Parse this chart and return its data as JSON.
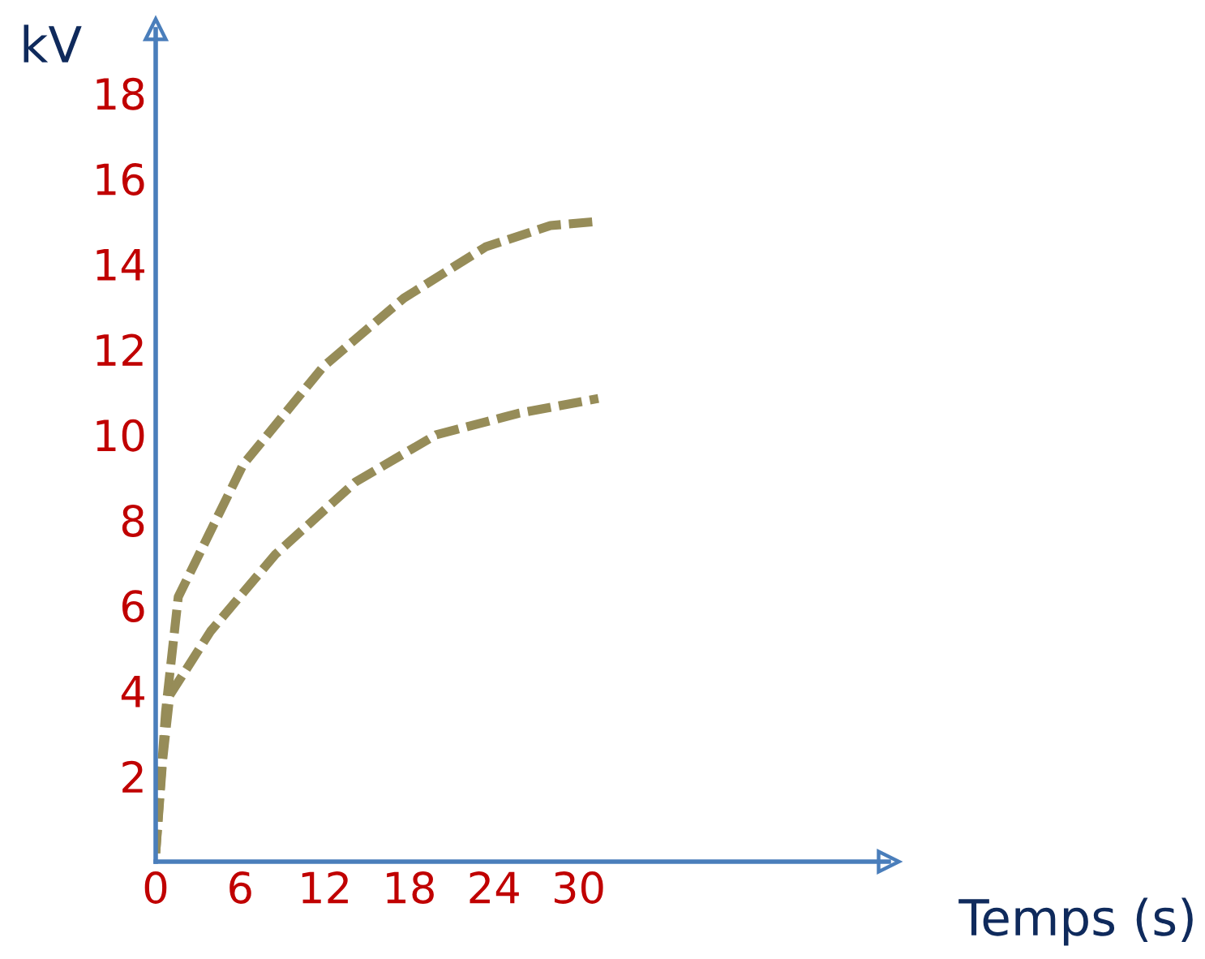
{
  "chart_data": {
    "type": "line",
    "xlabel": "Temps (s)",
    "ylabel": "kV",
    "xlim": [
      0,
      52
    ],
    "ylim": [
      0,
      19.5
    ],
    "xticks": [
      0,
      6,
      12,
      18,
      24,
      30
    ],
    "yticks": [
      2,
      4,
      6,
      8,
      10,
      12,
      14,
      16,
      18
    ],
    "grid": false,
    "legend": false,
    "line_style": "dashed",
    "marker": "none",
    "series": [
      {
        "color": "#968c58",
        "x": [
          0,
          0.7,
          1.6,
          6.2,
          11.9,
          17.6,
          23.4,
          28,
          31.4
        ],
        "values": [
          0.2,
          3.5,
          6.2,
          9.3,
          11.6,
          13.2,
          14.4,
          14.9,
          15.0
        ]
      },
      {
        "color": "#968c58",
        "x": [
          0,
          0.5,
          1,
          3.9,
          8.5,
          14.2,
          19.9,
          25.7,
          31.4
        ],
        "values": [
          0.2,
          2.4,
          3.9,
          5.4,
          7.2,
          8.9,
          10.0,
          10.5,
          10.85
        ]
      }
    ]
  }
}
